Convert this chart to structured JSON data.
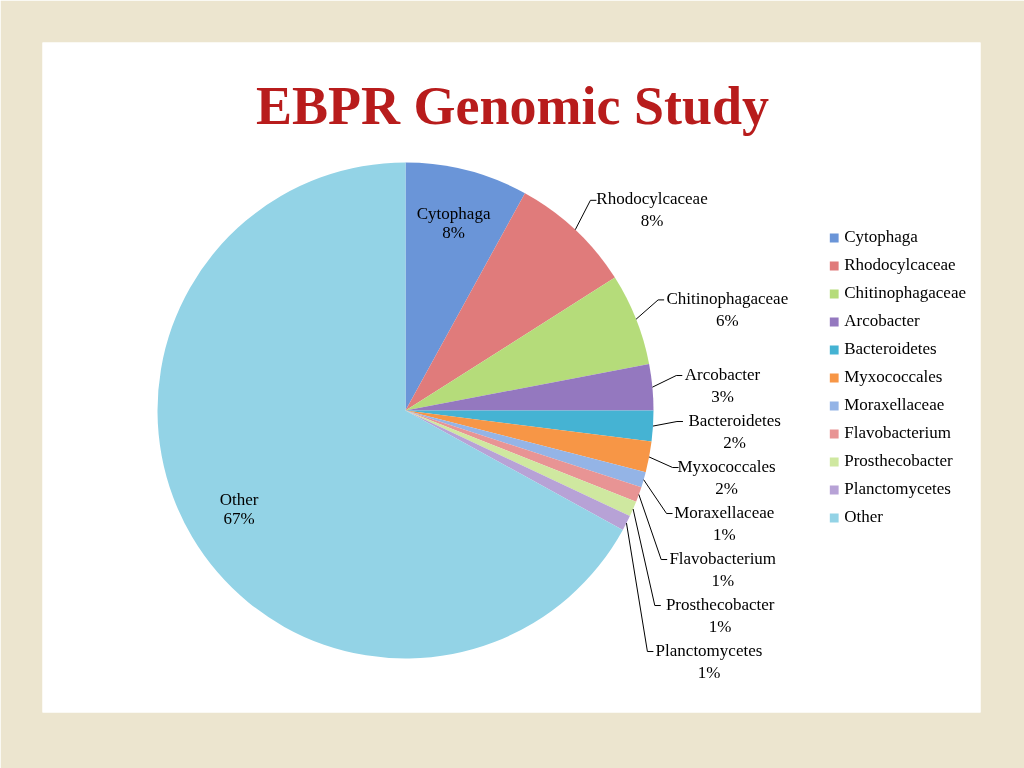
{
  "chart_data": {
    "type": "pie",
    "title": "EBPR Genomic Study",
    "categories": [
      "Cytophaga",
      "Rhodocylcaceae",
      "Chitinophagaceae",
      "Arcobacter",
      "Bacteroidetes",
      "Myxococcales",
      "Moraxellaceae",
      "Flavobacterium",
      "Prosthecobacter",
      "Planctomycetes",
      "Other"
    ],
    "values": [
      8,
      8,
      6,
      3,
      2,
      2,
      1,
      1,
      1,
      1,
      67
    ],
    "colors": [
      "#6a95d8",
      "#e07b7b",
      "#b5dc7a",
      "#9478bf",
      "#45b3d3",
      "#f79646",
      "#94b4e6",
      "#e89494",
      "#cfe8a0",
      "#b7a2d6",
      "#93d3e6"
    ],
    "value_labels": [
      "8%",
      "8%",
      "6%",
      "3%",
      "2%",
      "2%",
      "1%",
      "1%",
      "1%",
      "1%",
      "67%"
    ],
    "legend": "right"
  }
}
